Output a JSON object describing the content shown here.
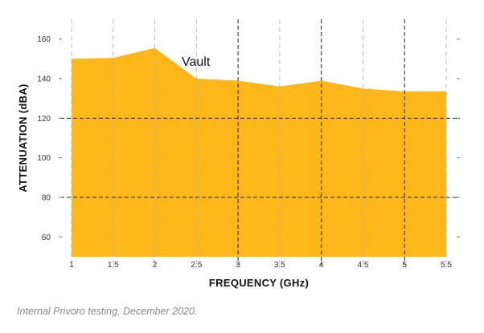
{
  "chart_data": {
    "type": "area",
    "xlabel": "FREQUENCY (GHz)",
    "ylabel": "ATTENUATION (dBA)",
    "xlim": [
      1,
      5.5
    ],
    "ylim": [
      50,
      170
    ],
    "x_ticks": [
      "1",
      "1.5",
      "2",
      "2.5",
      "3",
      "3.5",
      "4",
      "4.5",
      "5",
      "5.5"
    ],
    "y_ticks": [
      "60",
      "80",
      "100",
      "120",
      "140",
      "160"
    ],
    "emphasized_x_gridlines": [
      3,
      4,
      5
    ],
    "emphasized_y_gridlines": [
      80,
      120
    ],
    "series": [
      {
        "name": "Vault",
        "color": "#FDB71A",
        "x": [
          1,
          1.5,
          2,
          2.5,
          3,
          3.5,
          4,
          4.5,
          5,
          5.5
        ],
        "values": [
          150,
          150.5,
          155.5,
          140,
          139,
          136,
          139,
          135,
          133.5,
          133.5
        ]
      }
    ]
  },
  "caption": "Internal Privoro testing, December 2020."
}
